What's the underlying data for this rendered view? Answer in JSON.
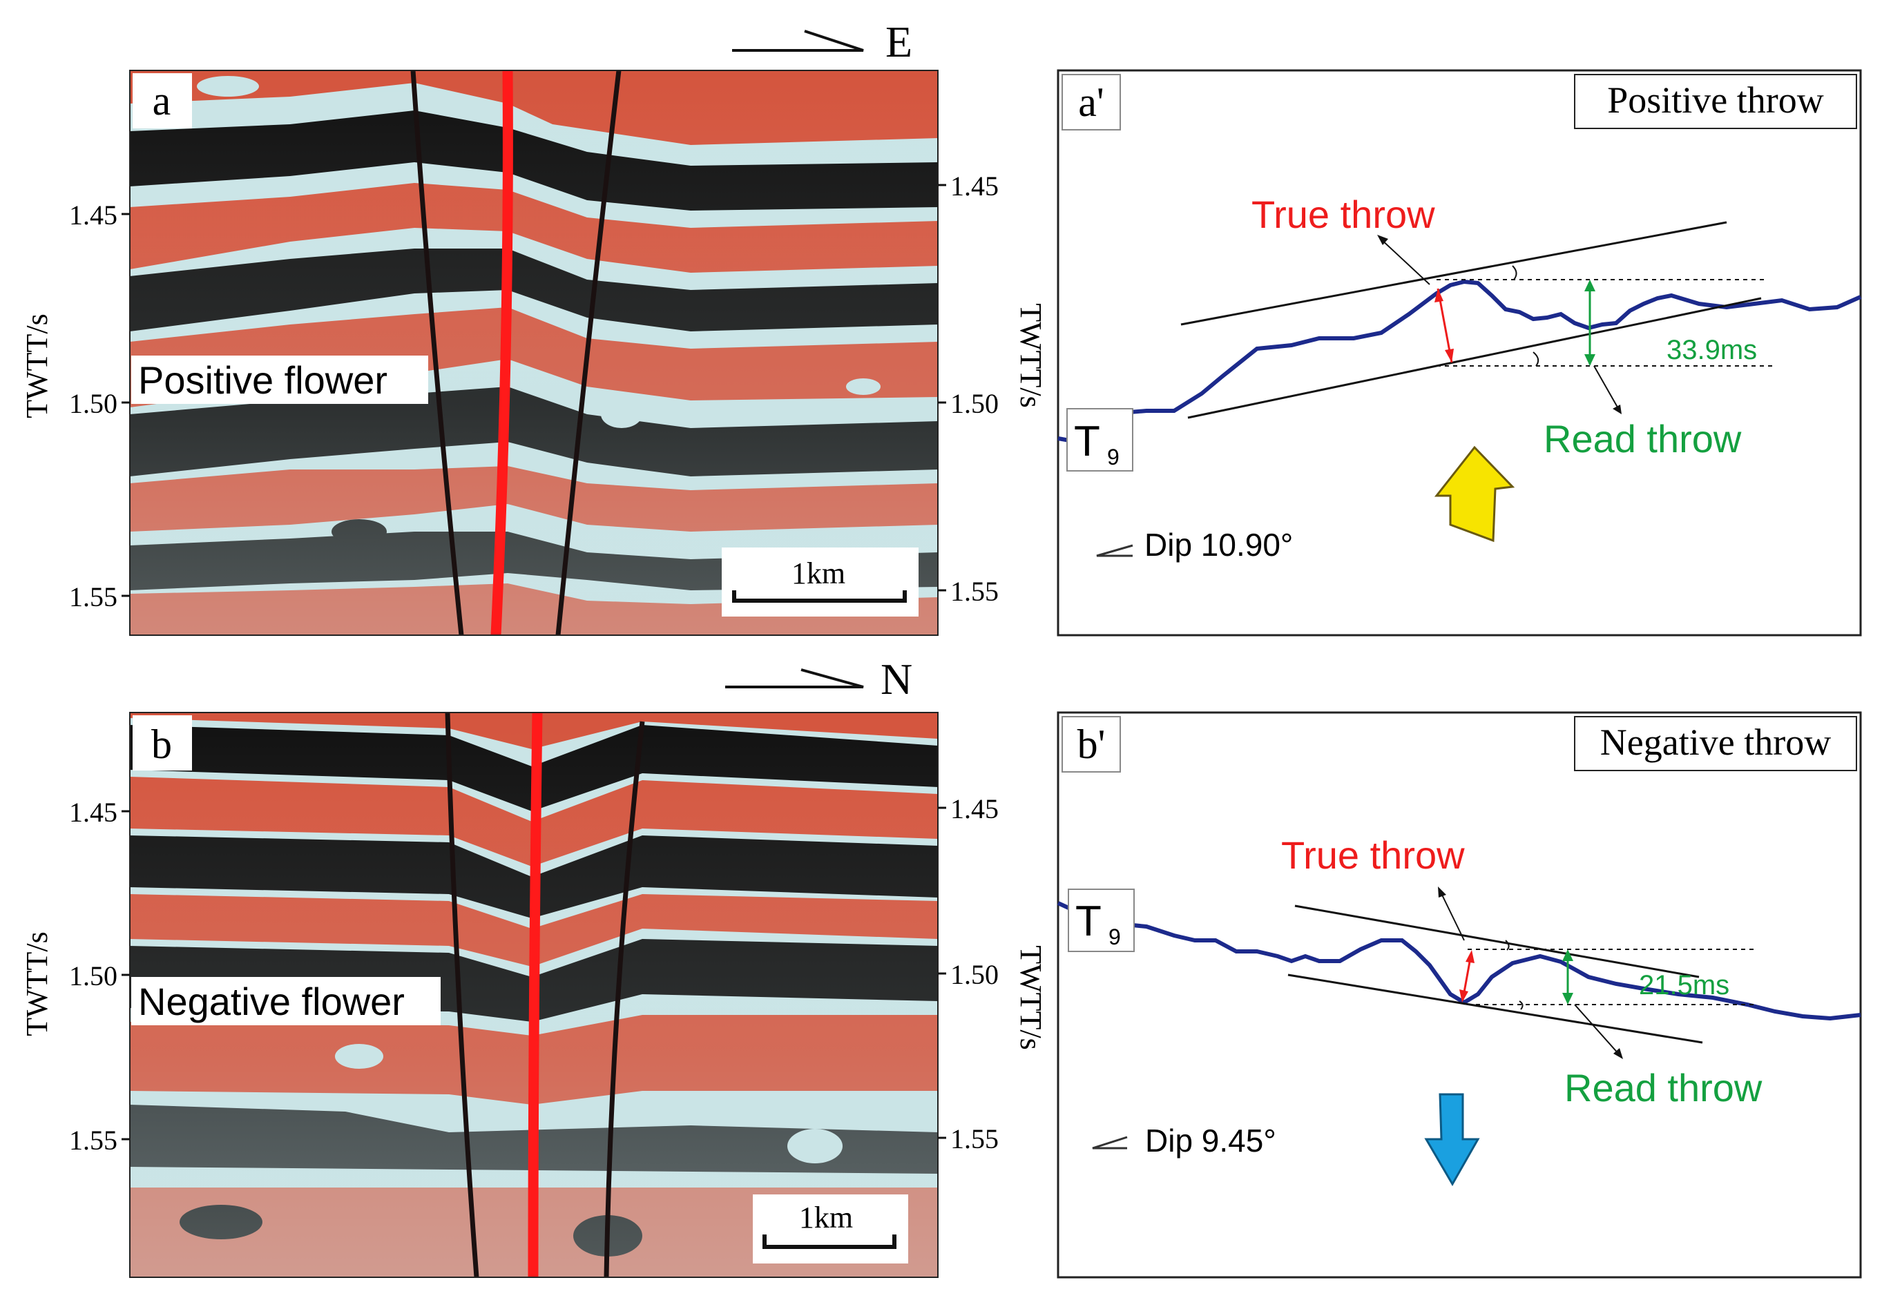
{
  "panel_a": {
    "label": "a",
    "direction": "E",
    "axis_title_left": "TWTT/s",
    "axis_title_right": "TWTT/s",
    "ticks_left": [
      "1.45",
      "1.50",
      "1.55"
    ],
    "ticks_right": [
      "1.45",
      "1.50",
      "1.55"
    ],
    "annotation": "Positive flower",
    "scale": "1km"
  },
  "panel_b": {
    "label": "b",
    "direction": "N",
    "axis_title_left": "TWTT/s",
    "axis_title_right": "TWTT/s",
    "ticks_left": [
      "1.45",
      "1.50",
      "1.55"
    ],
    "ticks_right": [
      "1.45",
      "1.50",
      "1.55"
    ],
    "annotation": "Negative flower",
    "scale": "1km"
  },
  "panel_a_prime": {
    "label": "a'",
    "title": "Positive throw",
    "true_throw": "True throw",
    "read_throw": "Read throw",
    "throw_value": "33.9ms",
    "horizon_letter": "T",
    "horizon_sub": "9",
    "dip_label": "Dip 10.90°"
  },
  "panel_b_prime": {
    "label": "b'",
    "title": "Negative throw",
    "true_throw": "True throw",
    "read_throw": "Read throw",
    "throw_value": "21.5ms",
    "horizon_letter": "T",
    "horizon_sub": "9",
    "dip_label": "Dip 9.45°"
  },
  "colors": {
    "peak": "#d4553e",
    "trough": "#111111",
    "fault_main": "#ff1a1a",
    "fault_branch": "#1a1010",
    "horizon": "#1c2a8c",
    "true_throw": "#ee1c1c",
    "read_throw": "#14a040",
    "arrow_up": "#f7e400",
    "arrow_down": "#1aa0e0"
  }
}
